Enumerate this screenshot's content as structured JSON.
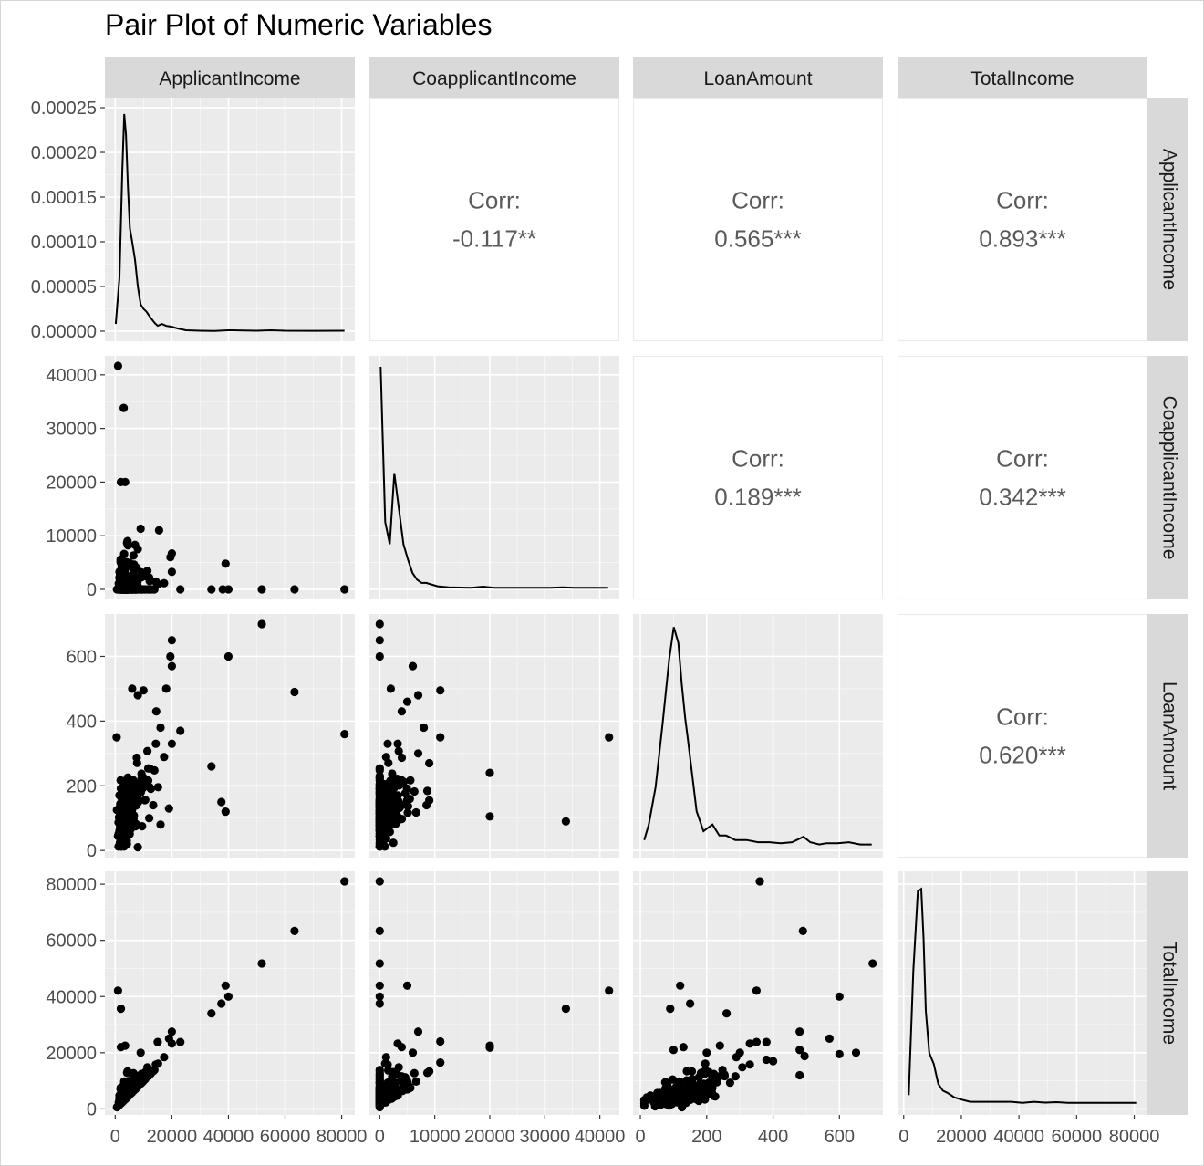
{
  "chart_data": {
    "type": "scatter",
    "subtype": "pair-plot",
    "title": "Pair Plot of Numeric Variables",
    "variables": [
      "ApplicantIncome",
      "CoapplicantIncome",
      "LoanAmount",
      "TotalIncome"
    ],
    "strip_labels_top": [
      "ApplicantIncome",
      "CoapplicantIncome",
      "LoanAmount",
      "TotalIncome"
    ],
    "strip_labels_right": [
      "ApplicantIncome",
      "CoapplicantIncome",
      "LoanAmount",
      "TotalIncome"
    ],
    "corr_label": "Corr:",
    "correlations": [
      {
        "row": 0,
        "col": 1,
        "value": "-0.117**"
      },
      {
        "row": 0,
        "col": 2,
        "value": "0.565***"
      },
      {
        "row": 0,
        "col": 3,
        "value": "0.893***"
      },
      {
        "row": 1,
        "col": 2,
        "value": "0.189***"
      },
      {
        "row": 1,
        "col": 3,
        "value": "0.342***"
      },
      {
        "row": 2,
        "col": 3,
        "value": "0.620***"
      }
    ],
    "x_ranges": [
      [
        0,
        81000
      ],
      [
        0,
        41667
      ],
      [
        9,
        700
      ],
      [
        1442,
        81000
      ]
    ],
    "y_ranges": [
      [
        0,
        41667
      ],
      [
        9,
        700
      ],
      [
        1442,
        81000
      ]
    ],
    "density_y_range": [
      0,
      0.00025
    ],
    "x_ticks": [
      [
        "0",
        "20000",
        "40000",
        "60000",
        "80000"
      ],
      [
        "0",
        "10000",
        "20000",
        "30000",
        "40000"
      ],
      [
        "0",
        "200",
        "400",
        "600"
      ],
      [
        "0",
        "20000",
        "40000",
        "60000",
        "80000"
      ]
    ],
    "y_ticks": [
      [
        "0.00000",
        "0.00005",
        "0.00010",
        "0.00015",
        "0.00020",
        "0.00025"
      ],
      [
        "0",
        "10000",
        "20000",
        "30000",
        "40000"
      ],
      [
        "0",
        "200",
        "400",
        "600"
      ],
      [
        "0",
        "20000",
        "40000",
        "60000",
        "80000"
      ]
    ],
    "densities": [
      {
        "variable": "ApplicantIncome",
        "y_max": 0.00025,
        "x": [
          200,
          1500,
          2500,
          3200,
          3800,
          4500,
          5200,
          6000,
          7000,
          8000,
          9000,
          10000,
          11000,
          12500,
          14000,
          15000,
          16500,
          18000,
          20000,
          22000,
          25000,
          30000,
          35000,
          40000,
          45000,
          50000,
          55000,
          60000,
          70000,
          81000
        ],
        "y": [
          8e-06,
          6e-05,
          0.00018,
          0.000243,
          0.00022,
          0.00016,
          0.000115,
          0.0001,
          8e-05,
          5e-05,
          3e-05,
          2.5e-05,
          2.2e-05,
          1.5e-05,
          9e-06,
          6e-06,
          8e-06,
          6e-06,
          5e-06,
          3e-06,
          1e-06,
          5e-07,
          3e-07,
          1e-06,
          8e-07,
          5e-07,
          1e-06,
          5e-07,
          4e-07,
          5e-07
        ]
      },
      {
        "variable": "CoapplicantIncome",
        "rel_x": [
          0,
          0.02,
          0.04,
          0.06,
          0.08,
          0.1,
          0.12,
          0.14,
          0.16,
          0.18,
          0.2,
          0.25,
          0.3,
          0.35,
          0.4,
          0.45,
          0.5,
          0.55,
          0.6,
          0.65,
          0.7,
          0.75,
          0.8,
          0.85,
          0.9,
          0.95,
          1.0
        ],
        "rel_y": [
          1.0,
          0.3,
          0.2,
          0.52,
          0.36,
          0.2,
          0.13,
          0.07,
          0.04,
          0.025,
          0.025,
          0.01,
          0.005,
          0.004,
          0.003,
          0.008,
          0.003,
          0.003,
          0.003,
          0.003,
          0.003,
          0.003,
          0.005,
          0.003,
          0.003,
          0.003,
          0.003
        ]
      },
      {
        "variable": "LoanAmount",
        "rel_x": [
          0,
          0.02,
          0.05,
          0.08,
          0.11,
          0.13,
          0.15,
          0.165,
          0.18,
          0.19,
          0.21,
          0.23,
          0.26,
          0.3,
          0.33,
          0.36,
          0.4,
          0.45,
          0.5,
          0.55,
          0.6,
          0.65,
          0.7,
          0.73,
          0.77,
          0.8,
          0.85,
          0.9,
          0.95,
          1.0
        ],
        "rel_y": [
          0.03,
          0.1,
          0.27,
          0.55,
          0.85,
          0.99,
          0.92,
          0.73,
          0.58,
          0.5,
          0.33,
          0.16,
          0.07,
          0.1,
          0.05,
          0.05,
          0.03,
          0.03,
          0.02,
          0.02,
          0.015,
          0.02,
          0.045,
          0.02,
          0.01,
          0.015,
          0.015,
          0.02,
          0.01,
          0.01
        ]
      },
      {
        "variable": "TotalIncome",
        "rel_x": [
          0,
          0.02,
          0.04,
          0.055,
          0.065,
          0.075,
          0.09,
          0.11,
          0.13,
          0.15,
          0.17,
          0.2,
          0.23,
          0.27,
          0.3,
          0.35,
          0.4,
          0.45,
          0.5,
          0.55,
          0.6,
          0.65,
          0.7,
          0.75,
          0.8,
          0.85,
          0.9,
          0.95,
          1.0
        ],
        "rel_y": [
          0.04,
          0.6,
          0.96,
          0.97,
          0.75,
          0.42,
          0.23,
          0.18,
          0.09,
          0.06,
          0.05,
          0.03,
          0.02,
          0.01,
          0.01,
          0.01,
          0.01,
          0.01,
          0.005,
          0.01,
          0.006,
          0.008,
          0.005,
          0.005,
          0.005,
          0.005,
          0.005,
          0.005,
          0.005
        ]
      }
    ],
    "outlier_points": {
      "coapplicant_vs_applicant": [
        [
          1000,
          41667
        ],
        [
          3000,
          33837
        ],
        [
          2000,
          20000
        ],
        [
          3500,
          20000
        ],
        [
          9000,
          11300
        ],
        [
          15500,
          11000
        ],
        [
          20000,
          6700
        ],
        [
          19500,
          6000
        ],
        [
          39000,
          4800
        ],
        [
          7000,
          8300
        ],
        [
          4500,
          8200
        ],
        [
          8000,
          7500
        ],
        [
          34000,
          0
        ],
        [
          38000,
          0
        ],
        [
          40000,
          0
        ],
        [
          51763,
          0
        ],
        [
          63337,
          0
        ],
        [
          81000,
          0
        ],
        [
          23000,
          0
        ],
        [
          12000,
          2200
        ]
      ],
      "loan_vs_applicant": [
        [
          51763,
          700
        ],
        [
          20000,
          650
        ],
        [
          19500,
          600
        ],
        [
          39999,
          600
        ],
        [
          20000,
          570
        ],
        [
          18000,
          500
        ],
        [
          6000,
          500
        ],
        [
          10000,
          495
        ],
        [
          8000,
          480
        ],
        [
          14500,
          430
        ],
        [
          16000,
          380
        ],
        [
          81000,
          360
        ],
        [
          23000,
          370
        ],
        [
          63337,
          490
        ],
        [
          34000,
          260
        ],
        [
          37500,
          150
        ],
        [
          39000,
          120
        ],
        [
          500,
          350
        ],
        [
          19000,
          130
        ],
        [
          12000,
          100
        ],
        [
          16000,
          80
        ],
        [
          8000,
          10
        ]
      ],
      "loan_vs_coapplicant": [
        [
          0,
          700
        ],
        [
          0,
          650
        ],
        [
          0,
          600
        ],
        [
          6000,
          570
        ],
        [
          11000,
          495
        ],
        [
          7000,
          480
        ],
        [
          5000,
          460
        ],
        [
          8000,
          380
        ],
        [
          11000,
          350
        ],
        [
          41667,
          350
        ],
        [
          20000,
          240
        ],
        [
          20000,
          105
        ],
        [
          33837,
          90
        ],
        [
          9000,
          270
        ],
        [
          7000,
          300
        ],
        [
          4000,
          430
        ],
        [
          2000,
          500
        ],
        [
          8500,
          140
        ]
      ],
      "total_vs_applicant": [
        [
          81000,
          81000
        ],
        [
          63337,
          63337
        ],
        [
          51763,
          51763
        ],
        [
          39000,
          43897
        ],
        [
          39999,
          40000
        ],
        [
          37500,
          37500
        ],
        [
          34000,
          34000
        ],
        [
          1000,
          42083
        ],
        [
          2000,
          35673
        ],
        [
          3500,
          22500
        ],
        [
          2000,
          22000
        ],
        [
          20000,
          27500
        ],
        [
          19000,
          25000
        ],
        [
          23000,
          23803
        ],
        [
          15000,
          23800
        ],
        [
          9000,
          20000
        ]
      ],
      "total_vs_coapplicant": [
        [
          0,
          81000
        ],
        [
          0,
          63337
        ],
        [
          0,
          51763
        ],
        [
          0,
          43897
        ],
        [
          0,
          40000
        ],
        [
          0,
          37500
        ],
        [
          41667,
          42083
        ],
        [
          33837,
          35673
        ],
        [
          5000,
          43897
        ],
        [
          20000,
          22500
        ],
        [
          20000,
          21800
        ],
        [
          11000,
          24000
        ],
        [
          11000,
          16500
        ],
        [
          7000,
          27500
        ],
        [
          4000,
          22000
        ],
        [
          6000,
          20000
        ]
      ],
      "total_vs_loan": [
        [
          360,
          81000
        ],
        [
          490,
          63337
        ],
        [
          700,
          51763
        ],
        [
          120,
          43897
        ],
        [
          600,
          40000
        ],
        [
          150,
          37500
        ],
        [
          350,
          42083
        ],
        [
          90,
          35673
        ],
        [
          260,
          34000
        ],
        [
          650,
          20000
        ],
        [
          600,
          19500
        ],
        [
          570,
          25000
        ],
        [
          480,
          27500
        ],
        [
          480,
          21000
        ],
        [
          495,
          18800
        ],
        [
          480,
          12000
        ],
        [
          400,
          17000
        ],
        [
          380,
          17500
        ],
        [
          380,
          23800
        ],
        [
          350,
          23800
        ],
        [
          300,
          20000
        ],
        [
          240,
          22500
        ],
        [
          200,
          20000
        ],
        [
          130,
          22000
        ],
        [
          100,
          21000
        ]
      ]
    }
  }
}
